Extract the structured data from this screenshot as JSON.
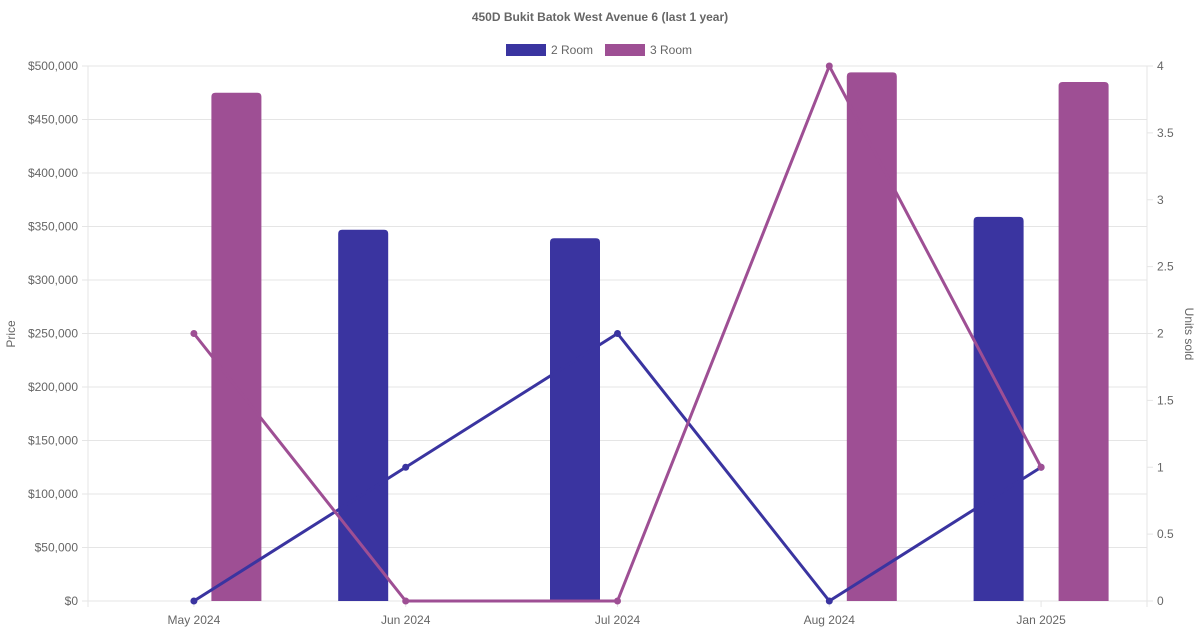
{
  "chart_data": {
    "type": "bar",
    "title": "450D Bukit Batok West Avenue 6 (last 1 year)",
    "categories": [
      "May 2024",
      "Jun 2024",
      "Jul 2024",
      "Aug 2024",
      "Jan 2025"
    ],
    "legend": [
      "2 Room",
      "3 Room"
    ],
    "legend_position": "top-center",
    "grid": true,
    "y_left": {
      "label": "Price",
      "lim": [
        0,
        500000
      ],
      "ticks": [
        "$0",
        "$50,000",
        "$100,000",
        "$150,000",
        "$200,000",
        "$250,000",
        "$300,000",
        "$350,000",
        "$400,000",
        "$450,000",
        "$500,000"
      ]
    },
    "y_right": {
      "label": "Units sold",
      "lim": [
        0,
        4
      ],
      "ticks": [
        "0",
        "0.5",
        "1",
        "1.5",
        "2",
        "2.5",
        "3",
        "3.5",
        "4"
      ]
    },
    "bar_series": [
      {
        "name": "2 Room",
        "color": "#3a34a0",
        "values": [
          null,
          347000,
          339000,
          null,
          359000
        ]
      },
      {
        "name": "3 Room",
        "color": "#9e4f94",
        "values": [
          475000,
          null,
          null,
          494000,
          485000
        ]
      }
    ],
    "line_series": [
      {
        "name": "2 Room",
        "color": "#3a34a0",
        "values": [
          0,
          1,
          2,
          0,
          1
        ]
      },
      {
        "name": "3 Room",
        "color": "#9e4f94",
        "values": [
          2,
          0,
          0,
          4,
          1
        ]
      }
    ]
  }
}
